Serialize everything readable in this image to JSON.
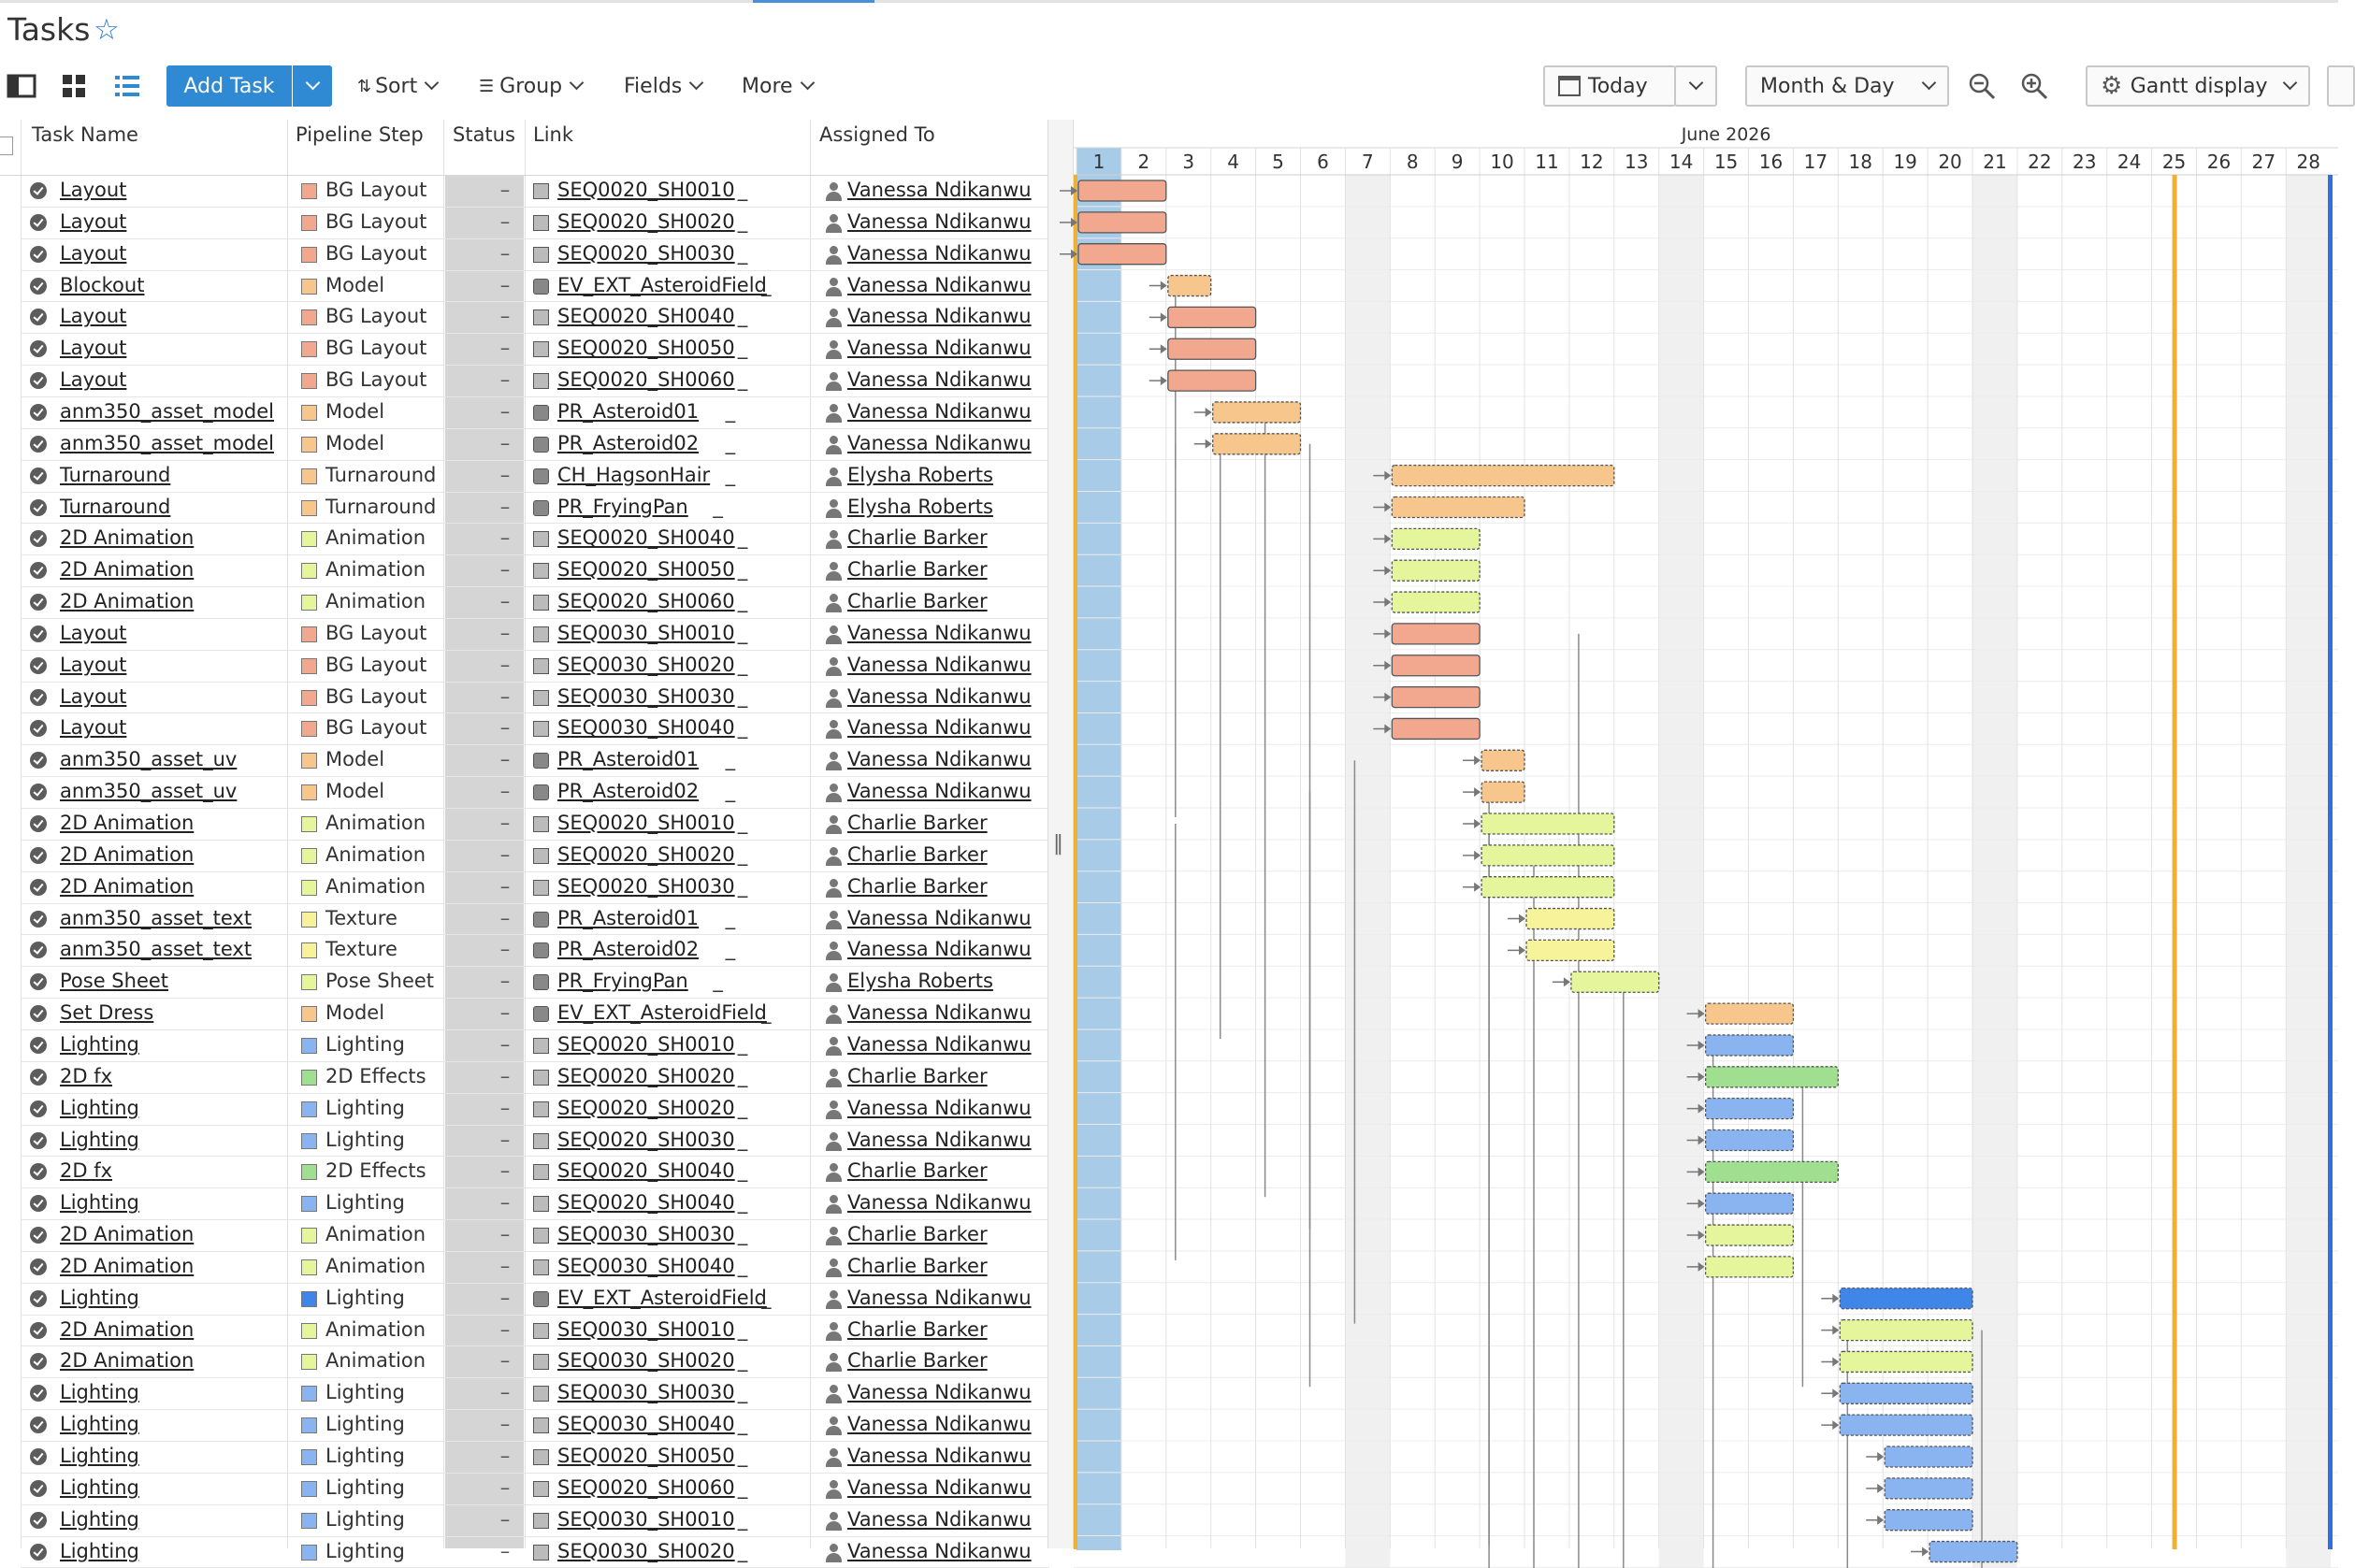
{
  "header": {
    "title": "Tasks"
  },
  "toolbar": {
    "add_task": "Add Task",
    "sort": "Sort",
    "group": "Group",
    "fields": "Fields",
    "more": "More",
    "today": "Today",
    "zoom": "Month & Day",
    "gantt_display": "Gantt display"
  },
  "columns": {
    "task_name": "Task Name",
    "pipeline_step": "Pipeline Step",
    "status": "Status",
    "link": "Link",
    "assigned_to": "Assigned To"
  },
  "status_placeholder": "–",
  "step_colors": {
    "BG Layout": "#f2a88f",
    "Model": "#f6c68c",
    "Turnaround": "#f6c68c",
    "Animation": "#e4f59c",
    "Texture": "#f7f39a",
    "Pose Sheet": "#e4f59c",
    "Lighting": "#8ab4f0",
    "2D Effects": "#9fdf8f"
  },
  "gantt": {
    "month_label": "June 2026",
    "days": [
      "1",
      "2",
      "3",
      "4",
      "5",
      "6",
      "7",
      "8",
      "9",
      "10",
      "11",
      "12",
      "13",
      "14",
      "15",
      "16",
      "17",
      "18",
      "19",
      "20",
      "21",
      "22",
      "23",
      "24",
      "25",
      "26",
      "27",
      "28"
    ],
    "weekend_days": [
      7,
      14,
      21,
      28
    ],
    "today_day": 1,
    "marker_day": 25
  },
  "tasks": [
    {
      "name": "Layout",
      "step": "BG Layout",
      "link": "SEQ0020_SH0010",
      "link_type": "shot",
      "assignee": "Vanessa Ndikanwu",
      "start": 1,
      "end": 3
    },
    {
      "name": "Layout",
      "step": "BG Layout",
      "link": "SEQ0020_SH0020",
      "link_type": "shot",
      "assignee": "Vanessa Ndikanwu",
      "start": 1,
      "end": 3
    },
    {
      "name": "Layout",
      "step": "BG Layout",
      "link": "SEQ0020_SH0030",
      "link_type": "shot",
      "assignee": "Vanessa Ndikanwu",
      "start": 1,
      "end": 3
    },
    {
      "name": "Blockout",
      "step": "Model",
      "link": "EV_EXT_AsteroidField",
      "link_type": "asset",
      "assignee": "Vanessa Ndikanwu",
      "start": 3,
      "end": 4,
      "dashed": true
    },
    {
      "name": "Layout",
      "step": "BG Layout",
      "link": "SEQ0020_SH0040",
      "link_type": "shot",
      "assignee": "Vanessa Ndikanwu",
      "start": 3,
      "end": 5
    },
    {
      "name": "Layout",
      "step": "BG Layout",
      "link": "SEQ0020_SH0050",
      "link_type": "shot",
      "assignee": "Vanessa Ndikanwu",
      "start": 3,
      "end": 5
    },
    {
      "name": "Layout",
      "step": "BG Layout",
      "link": "SEQ0020_SH0060",
      "link_type": "shot",
      "assignee": "Vanessa Ndikanwu",
      "start": 3,
      "end": 5
    },
    {
      "name": "anm350_asset_model",
      "step": "Model",
      "link": "PR_Asteroid01",
      "link_type": "asset",
      "assignee": "Vanessa Ndikanwu",
      "start": 4,
      "end": 6,
      "dashed": true
    },
    {
      "name": "anm350_asset_model",
      "step": "Model",
      "link": "PR_Asteroid02",
      "link_type": "asset",
      "assignee": "Vanessa Ndikanwu",
      "start": 4,
      "end": 6,
      "dashed": true
    },
    {
      "name": "Turnaround",
      "step": "Turnaround",
      "link": "CH_HagsonHair",
      "link_type": "asset",
      "assignee": "Elysha Roberts",
      "start": 8,
      "end": 13,
      "dashed": true
    },
    {
      "name": "Turnaround",
      "step": "Turnaround",
      "link": "PR_FryingPan",
      "link_type": "asset",
      "assignee": "Elysha Roberts",
      "start": 8,
      "end": 11,
      "dashed": true
    },
    {
      "name": "2D Animation",
      "step": "Animation",
      "link": "SEQ0020_SH0040",
      "link_type": "shot",
      "assignee": "Charlie Barker",
      "start": 8,
      "end": 10,
      "dashed": true
    },
    {
      "name": "2D Animation",
      "step": "Animation",
      "link": "SEQ0020_SH0050",
      "link_type": "shot",
      "assignee": "Charlie Barker",
      "start": 8,
      "end": 10,
      "dashed": true
    },
    {
      "name": "2D Animation",
      "step": "Animation",
      "link": "SEQ0020_SH0060",
      "link_type": "shot",
      "assignee": "Charlie Barker",
      "start": 8,
      "end": 10,
      "dashed": true
    },
    {
      "name": "Layout",
      "step": "BG Layout",
      "link": "SEQ0030_SH0010",
      "link_type": "shot",
      "assignee": "Vanessa Ndikanwu",
      "start": 8,
      "end": 10
    },
    {
      "name": "Layout",
      "step": "BG Layout",
      "link": "SEQ0030_SH0020",
      "link_type": "shot",
      "assignee": "Vanessa Ndikanwu",
      "start": 8,
      "end": 10
    },
    {
      "name": "Layout",
      "step": "BG Layout",
      "link": "SEQ0030_SH0030",
      "link_type": "shot",
      "assignee": "Vanessa Ndikanwu",
      "start": 8,
      "end": 10
    },
    {
      "name": "Layout",
      "step": "BG Layout",
      "link": "SEQ0030_SH0040",
      "link_type": "shot",
      "assignee": "Vanessa Ndikanwu",
      "start": 8,
      "end": 10
    },
    {
      "name": "anm350_asset_uv",
      "step": "Model",
      "link": "PR_Asteroid01",
      "link_type": "asset",
      "assignee": "Vanessa Ndikanwu",
      "start": 10,
      "end": 11,
      "dashed": true
    },
    {
      "name": "anm350_asset_uv",
      "step": "Model",
      "link": "PR_Asteroid02",
      "link_type": "asset",
      "assignee": "Vanessa Ndikanwu",
      "start": 10,
      "end": 11,
      "dashed": true
    },
    {
      "name": "2D Animation",
      "step": "Animation",
      "link": "SEQ0020_SH0010",
      "link_type": "shot",
      "assignee": "Charlie Barker",
      "start": 10,
      "end": 13,
      "dashed": true
    },
    {
      "name": "2D Animation",
      "step": "Animation",
      "link": "SEQ0020_SH0020",
      "link_type": "shot",
      "assignee": "Charlie Barker",
      "start": 10,
      "end": 13,
      "dashed": true
    },
    {
      "name": "2D Animation",
      "step": "Animation",
      "link": "SEQ0020_SH0030",
      "link_type": "shot",
      "assignee": "Charlie Barker",
      "start": 10,
      "end": 13,
      "dashed": true
    },
    {
      "name": "anm350_asset_text",
      "step": "Texture",
      "link": "PR_Asteroid01",
      "link_type": "asset",
      "assignee": "Vanessa Ndikanwu",
      "start": 11,
      "end": 13,
      "dashed": true
    },
    {
      "name": "anm350_asset_text",
      "step": "Texture",
      "link": "PR_Asteroid02",
      "link_type": "asset",
      "assignee": "Vanessa Ndikanwu",
      "start": 11,
      "end": 13,
      "dashed": true
    },
    {
      "name": "Pose Sheet",
      "step": "Pose Sheet",
      "link": "PR_FryingPan",
      "link_type": "asset",
      "assignee": "Elysha Roberts",
      "start": 12,
      "end": 14,
      "dashed": true
    },
    {
      "name": "Set Dress",
      "step": "Model",
      "link": "EV_EXT_AsteroidField",
      "link_type": "asset",
      "assignee": "Vanessa Ndikanwu",
      "start": 15,
      "end": 17,
      "dashed": true
    },
    {
      "name": "Lighting",
      "step": "Lighting",
      "link": "SEQ0020_SH0010",
      "link_type": "shot",
      "assignee": "Vanessa Ndikanwu",
      "start": 15,
      "end": 17,
      "dashed": true
    },
    {
      "name": "2D fx",
      "step": "2D Effects",
      "link": "SEQ0020_SH0020",
      "link_type": "shot",
      "assignee": "Charlie Barker",
      "start": 15,
      "end": 18,
      "dashed": true
    },
    {
      "name": "Lighting",
      "step": "Lighting",
      "link": "SEQ0020_SH0020",
      "link_type": "shot",
      "assignee": "Vanessa Ndikanwu",
      "start": 15,
      "end": 17,
      "dashed": true
    },
    {
      "name": "Lighting",
      "step": "Lighting",
      "link": "SEQ0020_SH0030",
      "link_type": "shot",
      "assignee": "Vanessa Ndikanwu",
      "start": 15,
      "end": 17,
      "dashed": true
    },
    {
      "name": "2D fx",
      "step": "2D Effects",
      "link": "SEQ0020_SH0040",
      "link_type": "shot",
      "assignee": "Charlie Barker",
      "start": 15,
      "end": 18,
      "dashed": true
    },
    {
      "name": "Lighting",
      "step": "Lighting",
      "link": "SEQ0020_SH0040",
      "link_type": "shot",
      "assignee": "Vanessa Ndikanwu",
      "start": 15,
      "end": 17,
      "dashed": true
    },
    {
      "name": "2D Animation",
      "step": "Animation",
      "link": "SEQ0030_SH0030",
      "link_type": "shot",
      "assignee": "Charlie Barker",
      "start": 15,
      "end": 17,
      "dashed": true
    },
    {
      "name": "2D Animation",
      "step": "Animation",
      "link": "SEQ0030_SH0040",
      "link_type": "shot",
      "assignee": "Charlie Barker",
      "start": 15,
      "end": 17,
      "dashed": true
    },
    {
      "name": "Lighting",
      "step": "Lighting",
      "link": "EV_EXT_AsteroidField",
      "link_type": "asset",
      "assignee": "Vanessa Ndikanwu",
      "start": 18,
      "end": 21,
      "dashed": true,
      "color": "#3f86e8"
    },
    {
      "name": "2D Animation",
      "step": "Animation",
      "link": "SEQ0030_SH0010",
      "link_type": "shot",
      "assignee": "Charlie Barker",
      "start": 18,
      "end": 21,
      "dashed": true
    },
    {
      "name": "2D Animation",
      "step": "Animation",
      "link": "SEQ0030_SH0020",
      "link_type": "shot",
      "assignee": "Charlie Barker",
      "start": 18,
      "end": 21,
      "dashed": true
    },
    {
      "name": "Lighting",
      "step": "Lighting",
      "link": "SEQ0030_SH0030",
      "link_type": "shot",
      "assignee": "Vanessa Ndikanwu",
      "start": 18,
      "end": 21,
      "dashed": true
    },
    {
      "name": "Lighting",
      "step": "Lighting",
      "link": "SEQ0030_SH0040",
      "link_type": "shot",
      "assignee": "Vanessa Ndikanwu",
      "start": 18,
      "end": 21,
      "dashed": true
    },
    {
      "name": "Lighting",
      "step": "Lighting",
      "link": "SEQ0020_SH0050",
      "link_type": "shot",
      "assignee": "Vanessa Ndikanwu",
      "start": 19,
      "end": 21,
      "dashed": true
    },
    {
      "name": "Lighting",
      "step": "Lighting",
      "link": "SEQ0020_SH0060",
      "link_type": "shot",
      "assignee": "Vanessa Ndikanwu",
      "start": 19,
      "end": 21,
      "dashed": true
    },
    {
      "name": "Lighting",
      "step": "Lighting",
      "link": "SEQ0030_SH0010",
      "link_type": "shot",
      "assignee": "Vanessa Ndikanwu",
      "start": 19,
      "end": 21,
      "dashed": true
    },
    {
      "name": "Lighting",
      "step": "Lighting",
      "link": "SEQ0030_SH0020",
      "link_type": "shot",
      "assignee": "Vanessa Ndikanwu",
      "start": 20,
      "end": 22,
      "dashed": true
    }
  ]
}
